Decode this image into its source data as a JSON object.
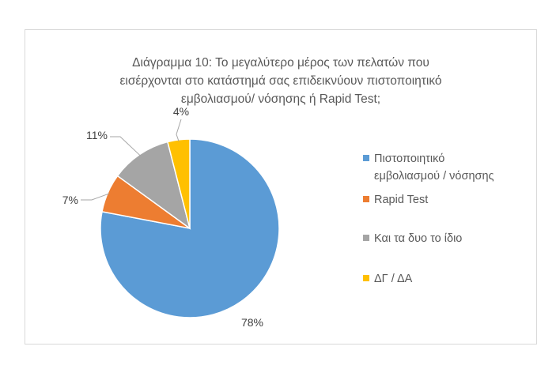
{
  "chart_data": {
    "type": "pie",
    "title_lines": [
      "Διάγραμμα 10: Το μεγαλύτερο μέρος των πελατών που",
      "εισέρχονται στο κατάστημά σας επιδεικνύουν πιστοποιητικό",
      "εμβολιασμού/ νόσησης ή Rapid Test;"
    ],
    "slices": [
      {
        "label_lines": [
          "Πιστοποιητικό",
          "εμβολιασμού /  νόσησης"
        ],
        "value": 78,
        "display": "78%",
        "color": "#5b9bd5"
      },
      {
        "label_lines": [
          "Rapid Test"
        ],
        "value": 7,
        "display": "7%",
        "color": "#ed7d31"
      },
      {
        "label_lines": [
          "Και τα δυο το ίδιο"
        ],
        "value": 11,
        "display": "11%",
        "color": "#a5a5a5"
      },
      {
        "label_lines": [
          "ΔΓ / ΔΑ"
        ],
        "value": 4,
        "display": "4%",
        "color": "#ffc000"
      }
    ],
    "legend_position": "right"
  }
}
